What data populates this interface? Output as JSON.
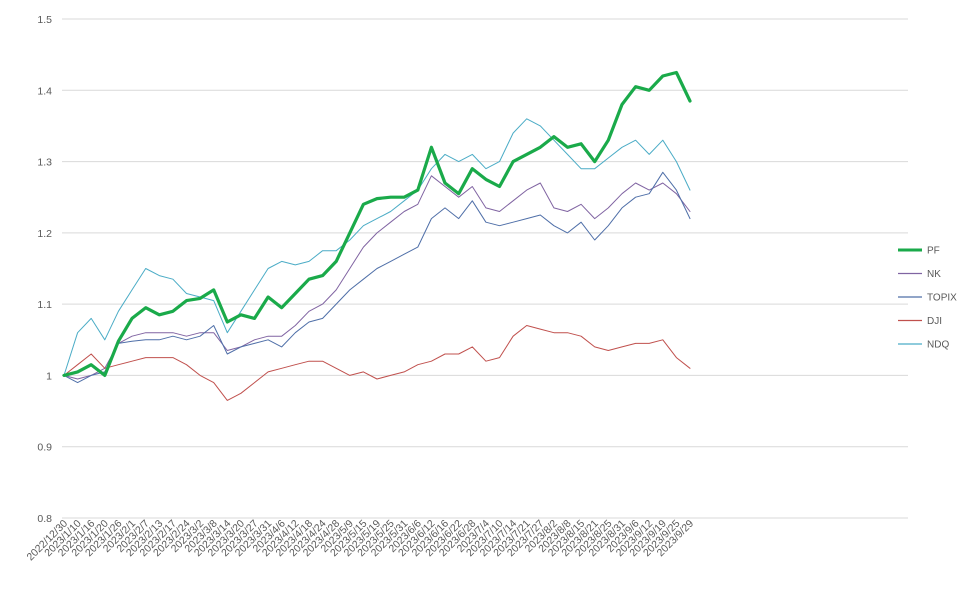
{
  "chart_data": {
    "type": "line",
    "title": "",
    "xlabel": "",
    "ylabel": "",
    "ylim": [
      0.8,
      1.5
    ],
    "yticks": [
      0.8,
      0.9,
      1,
      1.1,
      1.2,
      1.3,
      1.4,
      1.5
    ],
    "ytick_labels": [
      "0.8",
      "0.9",
      "1",
      "1.1",
      "1.2",
      "1.3",
      "1.4",
      "1.5"
    ],
    "grid": "horizontal",
    "legend_position": "right",
    "x": [
      "2022/12/30",
      "2023/1/10",
      "2023/1/16",
      "2023/1/20",
      "2023/1/26",
      "2023/2/1",
      "2023/2/7",
      "2023/2/13",
      "2023/2/17",
      "2023/2/24",
      "2023/3/2",
      "2023/3/8",
      "2023/3/14",
      "2023/3/20",
      "2023/3/27",
      "2023/3/31",
      "2023/4/6",
      "2023/4/12",
      "2023/4/18",
      "2023/4/24",
      "2023/4/28",
      "2023/5/9",
      "2023/5/15",
      "2023/5/19",
      "2023/5/25",
      "2023/5/31",
      "2023/6/6",
      "2023/6/12",
      "2023/6/16",
      "2023/6/22",
      "2023/6/28",
      "2023/7/4",
      "2023/7/10",
      "2023/7/14",
      "2023/7/21",
      "2023/7/27",
      "2023/8/2",
      "2023/8/8",
      "2023/8/15",
      "2023/8/21",
      "2023/8/25",
      "2023/8/31",
      "2023/9/6",
      "2023/9/12",
      "2023/9/19",
      "2023/9/25",
      "2023/9/29"
    ],
    "series": [
      {
        "name": "PF",
        "color": "#1aaa4a",
        "width": 3.2,
        "values": [
          1.0,
          1.005,
          1.015,
          1.0,
          1.048,
          1.08,
          1.095,
          1.085,
          1.09,
          1.105,
          1.108,
          1.12,
          1.075,
          1.085,
          1.08,
          1.11,
          1.095,
          1.115,
          1.135,
          1.14,
          1.16,
          1.2,
          1.24,
          1.248,
          1.25,
          1.25,
          1.26,
          1.32,
          1.27,
          1.255,
          1.29,
          1.275,
          1.265,
          1.3,
          1.31,
          1.32,
          1.335,
          1.32,
          1.325,
          1.3,
          1.33,
          1.38,
          1.405,
          1.4,
          1.42,
          1.425,
          1.385
        ]
      },
      {
        "name": "NK",
        "color": "#8064a2",
        "width": 1,
        "values": [
          1.0,
          0.995,
          1.0,
          1.01,
          1.045,
          1.055,
          1.06,
          1.06,
          1.06,
          1.055,
          1.06,
          1.06,
          1.035,
          1.04,
          1.05,
          1.055,
          1.055,
          1.07,
          1.09,
          1.1,
          1.12,
          1.15,
          1.18,
          1.2,
          1.215,
          1.23,
          1.24,
          1.28,
          1.265,
          1.25,
          1.265,
          1.235,
          1.23,
          1.245,
          1.26,
          1.27,
          1.235,
          1.23,
          1.24,
          1.22,
          1.235,
          1.255,
          1.27,
          1.26,
          1.27,
          1.255,
          1.23
        ]
      },
      {
        "name": "TOPIX",
        "color": "#4f6fa8",
        "width": 1,
        "values": [
          1.0,
          0.99,
          1.0,
          1.005,
          1.045,
          1.048,
          1.05,
          1.05,
          1.055,
          1.05,
          1.055,
          1.07,
          1.03,
          1.04,
          1.045,
          1.05,
          1.04,
          1.06,
          1.075,
          1.08,
          1.1,
          1.12,
          1.135,
          1.15,
          1.16,
          1.17,
          1.18,
          1.22,
          1.235,
          1.22,
          1.245,
          1.215,
          1.21,
          1.215,
          1.22,
          1.225,
          1.21,
          1.2,
          1.215,
          1.19,
          1.21,
          1.235,
          1.25,
          1.255,
          1.285,
          1.26,
          1.22
        ]
      },
      {
        "name": "DJI",
        "color": "#c0504d",
        "width": 1,
        "values": [
          1.0,
          1.015,
          1.03,
          1.01,
          1.015,
          1.02,
          1.025,
          1.025,
          1.025,
          1.015,
          1.0,
          0.99,
          0.965,
          0.975,
          0.99,
          1.005,
          1.01,
          1.015,
          1.02,
          1.02,
          1.01,
          1.0,
          1.005,
          0.995,
          1.0,
          1.005,
          1.015,
          1.02,
          1.03,
          1.03,
          1.04,
          1.02,
          1.025,
          1.055,
          1.07,
          1.065,
          1.06,
          1.06,
          1.055,
          1.04,
          1.035,
          1.04,
          1.045,
          1.045,
          1.05,
          1.025,
          1.01
        ]
      },
      {
        "name": "NDQ",
        "color": "#4bacc6",
        "width": 1,
        "values": [
          1.0,
          1.06,
          1.08,
          1.05,
          1.09,
          1.12,
          1.15,
          1.14,
          1.135,
          1.115,
          1.11,
          1.105,
          1.06,
          1.09,
          1.12,
          1.15,
          1.16,
          1.155,
          1.16,
          1.175,
          1.175,
          1.19,
          1.21,
          1.22,
          1.23,
          1.245,
          1.26,
          1.29,
          1.31,
          1.3,
          1.31,
          1.29,
          1.3,
          1.34,
          1.36,
          1.35,
          1.33,
          1.31,
          1.29,
          1.29,
          1.305,
          1.32,
          1.33,
          1.31,
          1.33,
          1.3,
          1.26
        ]
      }
    ]
  }
}
